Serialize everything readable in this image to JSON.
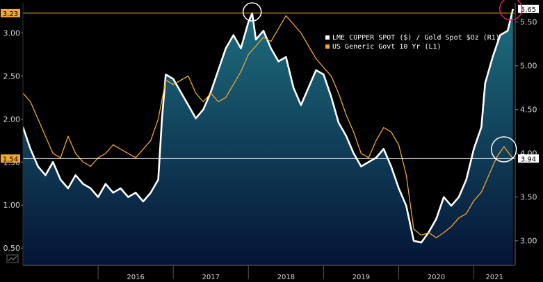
{
  "chart_data": {
    "type": "area",
    "title": "",
    "xlabel": "",
    "x_ticks": [
      "2016",
      "2017",
      "2018",
      "2019",
      "2020",
      "2021"
    ],
    "left_axis": {
      "ticks": [
        "0.50",
        "1.00",
        "1.50",
        "2.00",
        "2.50",
        "3.00"
      ],
      "range": [
        0.3,
        3.35
      ]
    },
    "right_axis": {
      "ticks": [
        "3.00",
        "3.50",
        "4.00",
        "4.50",
        "5.00",
        "5.50"
      ],
      "range": [
        2.72,
        5.72
      ]
    },
    "legend_placement": "top-right",
    "series": [
      {
        "name": "LME COPPER SPOT ($) / Gold Spot $Oz (R1)",
        "axis": "right",
        "color": "#ffffff",
        "fill": true,
        "values": [
          [
            2015.0,
            4.3
          ],
          [
            2015.1,
            4.05
          ],
          [
            2015.2,
            3.85
          ],
          [
            2015.3,
            3.75
          ],
          [
            2015.4,
            3.9
          ],
          [
            2015.5,
            3.7
          ],
          [
            2015.6,
            3.6
          ],
          [
            2015.7,
            3.75
          ],
          [
            2015.8,
            3.65
          ],
          [
            2015.9,
            3.6
          ],
          [
            2016.0,
            3.5
          ],
          [
            2016.1,
            3.65
          ],
          [
            2016.2,
            3.55
          ],
          [
            2016.3,
            3.6
          ],
          [
            2016.4,
            3.5
          ],
          [
            2016.5,
            3.55
          ],
          [
            2016.6,
            3.45
          ],
          [
            2016.7,
            3.55
          ],
          [
            2016.8,
            3.7
          ],
          [
            2016.85,
            4.4
          ],
          [
            2016.9,
            4.9
          ],
          [
            2017.0,
            4.85
          ],
          [
            2017.1,
            4.7
          ],
          [
            2017.2,
            4.55
          ],
          [
            2017.3,
            4.4
          ],
          [
            2017.4,
            4.5
          ],
          [
            2017.5,
            4.7
          ],
          [
            2017.6,
            4.95
          ],
          [
            2017.7,
            5.2
          ],
          [
            2017.8,
            5.35
          ],
          [
            2017.9,
            5.2
          ],
          [
            2018.0,
            5.5
          ],
          [
            2018.05,
            5.6
          ],
          [
            2018.1,
            5.3
          ],
          [
            2018.2,
            5.4
          ],
          [
            2018.3,
            5.2
          ],
          [
            2018.4,
            5.05
          ],
          [
            2018.5,
            5.1
          ],
          [
            2018.6,
            4.75
          ],
          [
            2018.7,
            4.55
          ],
          [
            2018.8,
            4.75
          ],
          [
            2018.9,
            4.95
          ],
          [
            2019.0,
            4.9
          ],
          [
            2019.1,
            4.65
          ],
          [
            2019.2,
            4.35
          ],
          [
            2019.3,
            4.2
          ],
          [
            2019.4,
            4.0
          ],
          [
            2019.5,
            3.85
          ],
          [
            2019.6,
            3.9
          ],
          [
            2019.7,
            3.95
          ],
          [
            2019.8,
            4.05
          ],
          [
            2019.9,
            3.85
          ],
          [
            2020.0,
            3.6
          ],
          [
            2020.1,
            3.4
          ],
          [
            2020.2,
            3.0
          ],
          [
            2020.3,
            2.98
          ],
          [
            2020.4,
            3.1
          ],
          [
            2020.5,
            3.25
          ],
          [
            2020.6,
            3.5
          ],
          [
            2020.7,
            3.4
          ],
          [
            2020.8,
            3.5
          ],
          [
            2020.9,
            3.7
          ],
          [
            2021.0,
            4.05
          ],
          [
            2021.1,
            4.3
          ],
          [
            2021.15,
            4.8
          ],
          [
            2021.25,
            5.1
          ],
          [
            2021.35,
            5.35
          ],
          [
            2021.45,
            5.4
          ],
          [
            2021.52,
            5.65
          ]
        ]
      },
      {
        "name": "US Generic Govt 10 Yr (L1)",
        "axis": "left",
        "color": "#f0a830",
        "fill": false,
        "values": [
          [
            2015.0,
            2.3
          ],
          [
            2015.1,
            2.2
          ],
          [
            2015.2,
            2.0
          ],
          [
            2015.3,
            1.8
          ],
          [
            2015.4,
            1.6
          ],
          [
            2015.5,
            1.55
          ],
          [
            2015.6,
            1.8
          ],
          [
            2015.7,
            1.6
          ],
          [
            2015.8,
            1.5
          ],
          [
            2015.9,
            1.45
          ],
          [
            2016.0,
            1.55
          ],
          [
            2016.1,
            1.6
          ],
          [
            2016.2,
            1.7
          ],
          [
            2016.3,
            1.65
          ],
          [
            2016.4,
            1.6
          ],
          [
            2016.5,
            1.55
          ],
          [
            2016.6,
            1.65
          ],
          [
            2016.7,
            1.75
          ],
          [
            2016.8,
            2.0
          ],
          [
            2016.9,
            2.45
          ],
          [
            2017.0,
            2.4
          ],
          [
            2017.1,
            2.45
          ],
          [
            2017.2,
            2.5
          ],
          [
            2017.3,
            2.3
          ],
          [
            2017.4,
            2.2
          ],
          [
            2017.5,
            2.3
          ],
          [
            2017.6,
            2.2
          ],
          [
            2017.7,
            2.25
          ],
          [
            2017.8,
            2.4
          ],
          [
            2017.9,
            2.55
          ],
          [
            2018.0,
            2.75
          ],
          [
            2018.1,
            2.85
          ],
          [
            2018.2,
            2.95
          ],
          [
            2018.3,
            2.9
          ],
          [
            2018.4,
            3.05
          ],
          [
            2018.5,
            3.2
          ],
          [
            2018.6,
            3.1
          ],
          [
            2018.7,
            3.0
          ],
          [
            2018.8,
            2.85
          ],
          [
            2018.9,
            2.7
          ],
          [
            2019.0,
            2.6
          ],
          [
            2019.1,
            2.5
          ],
          [
            2019.2,
            2.3
          ],
          [
            2019.3,
            2.05
          ],
          [
            2019.4,
            1.85
          ],
          [
            2019.5,
            1.6
          ],
          [
            2019.6,
            1.55
          ],
          [
            2019.7,
            1.75
          ],
          [
            2019.8,
            1.9
          ],
          [
            2019.9,
            1.85
          ],
          [
            2020.0,
            1.7
          ],
          [
            2020.1,
            1.35
          ],
          [
            2020.2,
            0.72
          ],
          [
            2020.3,
            0.65
          ],
          [
            2020.4,
            0.68
          ],
          [
            2020.5,
            0.62
          ],
          [
            2020.6,
            0.68
          ],
          [
            2020.7,
            0.75
          ],
          [
            2020.8,
            0.85
          ],
          [
            2020.9,
            0.9
          ],
          [
            2021.0,
            1.05
          ],
          [
            2021.1,
            1.15
          ],
          [
            2021.2,
            1.35
          ],
          [
            2021.3,
            1.55
          ],
          [
            2021.4,
            1.68
          ],
          [
            2021.45,
            1.62
          ],
          [
            2021.52,
            1.54
          ]
        ]
      }
    ],
    "last_value_tags": {
      "left_top": "3.23",
      "left_current": "1.54",
      "right_top": "5.65",
      "right_current": "3.94"
    },
    "colors": {
      "background": "#000000",
      "area_top": "#1e6f80",
      "area_bottom": "#051436",
      "copper_gold_line": "#ffffff",
      "yield_line": "#f0a830",
      "highlight_circle_white": "#ffffff",
      "highlight_circle_pink": "#e0226a",
      "tag_orange": "#f0a830"
    }
  }
}
